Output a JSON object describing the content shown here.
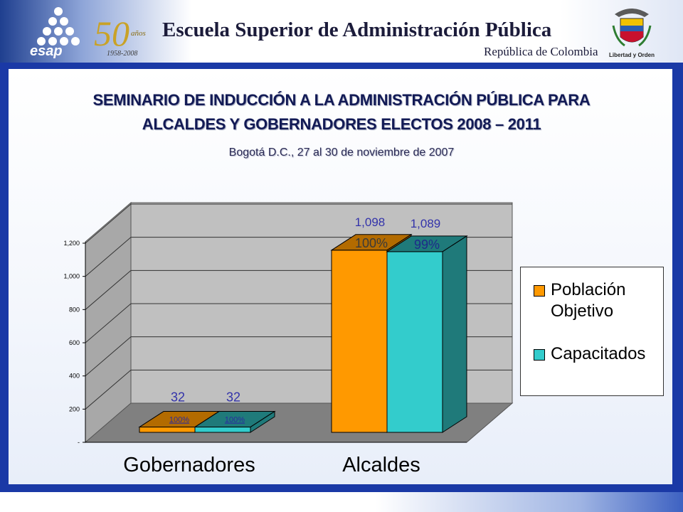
{
  "header": {
    "institution": "Escuela Superior de Administración Pública",
    "country": "República de Colombia",
    "logo_text": "esap",
    "anniversary": "50",
    "anniversary_word": "años",
    "anniversary_years": "1958-2008",
    "seal_motto": "Libertad y Orden"
  },
  "slide": {
    "title_line1": "SEMINARIO DE INDUCCIÓN A LA ADMINISTRACIÓN PÚBLICA PARA",
    "title_line2": "ALCALDES Y GOBERNADORES ELECTOS 2008 – 2011",
    "subtitle": "Bogotá D.C., 27 al 30 de noviembre de 2007"
  },
  "chart_data": {
    "type": "bar",
    "title": "",
    "xlabel": "",
    "ylabel": "",
    "categories": [
      "Gobernadores",
      "Alcaldes"
    ],
    "series": [
      {
        "name": "Población Objetivo",
        "values": [
          32,
          1098
        ],
        "percent_labels": [
          "100%",
          "100%"
        ],
        "color": "#ff9900"
      },
      {
        "name": "Capacitados",
        "values": [
          32,
          1089
        ],
        "percent_labels": [
          "100%",
          "99%"
        ],
        "color": "#33cccc"
      }
    ],
    "value_labels": [
      [
        "32",
        "1,098"
      ],
      [
        "32",
        "1,089"
      ]
    ],
    "ylim": [
      0,
      1200
    ],
    "yticks": [
      {
        "value": 0,
        "label": "-"
      },
      {
        "value": 200,
        "label": "200"
      },
      {
        "value": 400,
        "label": "400"
      },
      {
        "value": 600,
        "label": "600"
      },
      {
        "value": 800,
        "label": "800"
      },
      {
        "value": 1000,
        "label": "1,000"
      },
      {
        "value": 1200,
        "label": "1,200"
      }
    ],
    "grid": true,
    "legend_position": "right",
    "colors": {
      "wall": "#c0c0c0",
      "floor": "#808080",
      "orange_side": "#b36b00",
      "teal_side": "#1f7a7a",
      "value_label": "#3333aa"
    }
  }
}
